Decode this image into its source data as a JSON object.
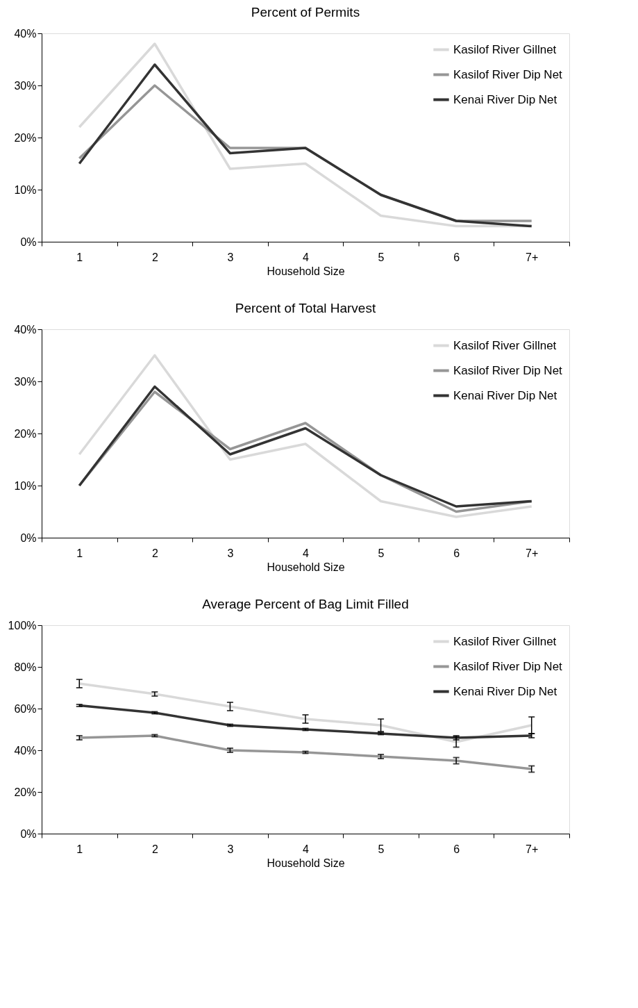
{
  "chart_data": [
    {
      "type": "line",
      "title": "Percent of Permits",
      "xlabel": "Household Size",
      "categories": [
        "1",
        "2",
        "3",
        "4",
        "5",
        "6",
        "7+"
      ],
      "ylim": [
        0,
        40
      ],
      "yticks": [
        {
          "value": 0,
          "label": "0%"
        },
        {
          "value": 10,
          "label": "10%"
        },
        {
          "value": 20,
          "label": "20%"
        },
        {
          "value": 30,
          "label": "30%"
        },
        {
          "value": 40,
          "label": "40%"
        }
      ],
      "grid": false,
      "legend": "top right",
      "marker": "none",
      "line_style": "solid",
      "series": [
        {
          "name": "Kasilof River Gillnet",
          "color": "#d9d9d9",
          "values": [
            22,
            38,
            14,
            15,
            5,
            3,
            3
          ]
        },
        {
          "name": "Kasilof River Dip Net",
          "color": "#969696",
          "values": [
            16,
            30,
            18,
            18,
            9,
            4,
            4
          ]
        },
        {
          "name": "Kenai River Dip Net",
          "color": "#333333",
          "values": [
            15,
            34,
            17,
            18,
            9,
            4,
            3
          ]
        }
      ]
    },
    {
      "type": "line",
      "title": "Percent of Total Harvest",
      "xlabel": "Household Size",
      "categories": [
        "1",
        "2",
        "3",
        "4",
        "5",
        "6",
        "7+"
      ],
      "ylim": [
        0,
        40
      ],
      "yticks": [
        {
          "value": 0,
          "label": "0%"
        },
        {
          "value": 10,
          "label": "10%"
        },
        {
          "value": 20,
          "label": "20%"
        },
        {
          "value": 30,
          "label": "30%"
        },
        {
          "value": 40,
          "label": "40%"
        }
      ],
      "grid": false,
      "legend": "top right",
      "marker": "none",
      "line_style": "solid",
      "series": [
        {
          "name": "Kasilof River Gillnet",
          "color": "#d9d9d9",
          "values": [
            16,
            35,
            15,
            18,
            7,
            4,
            6
          ]
        },
        {
          "name": "Kasilof River Dip Net",
          "color": "#969696",
          "values": [
            10,
            28,
            17,
            22,
            12,
            5,
            7
          ]
        },
        {
          "name": "Kenai River Dip Net",
          "color": "#333333",
          "values": [
            10,
            29,
            16,
            21,
            12,
            6,
            7
          ]
        }
      ]
    },
    {
      "type": "line",
      "title": "Average Percent of Bag Limit Filled",
      "xlabel": "Household Size",
      "categories": [
        "1",
        "2",
        "3",
        "4",
        "5",
        "6",
        "7+"
      ],
      "ylim": [
        0,
        100
      ],
      "yticks": [
        {
          "value": 0,
          "label": "0%"
        },
        {
          "value": 20,
          "label": "20%"
        },
        {
          "value": 40,
          "label": "40%"
        },
        {
          "value": 60,
          "label": "60%"
        },
        {
          "value": 80,
          "label": "80%"
        },
        {
          "value": 100,
          "label": "100%"
        }
      ],
      "grid": false,
      "legend": "top right",
      "marker": "none",
      "line_style": "solid",
      "series": [
        {
          "name": "Kasilof River Gillnet",
          "color": "#d9d9d9",
          "values": [
            72,
            67,
            61,
            55,
            52,
            44,
            52
          ],
          "errors": [
            2,
            1,
            2,
            2,
            3,
            2.5,
            4
          ]
        },
        {
          "name": "Kasilof River Dip Net",
          "color": "#969696",
          "values": [
            46,
            47,
            40,
            39,
            37,
            35,
            31
          ],
          "errors": [
            1,
            0.5,
            1,
            0.5,
            1,
            1.5,
            1.5
          ]
        },
        {
          "name": "Kenai River Dip Net",
          "color": "#333333",
          "values": [
            61.5,
            58,
            52,
            50,
            48,
            46,
            47
          ],
          "errors": [
            0.5,
            0.5,
            0.5,
            0.5,
            0.5,
            1,
            1
          ]
        }
      ]
    }
  ]
}
